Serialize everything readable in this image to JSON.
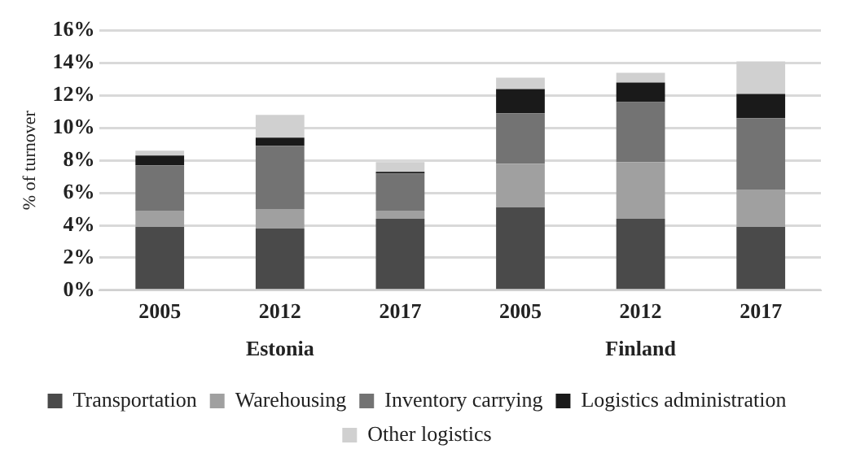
{
  "chart_data": {
    "type": "bar",
    "stacked": true,
    "ylabel": "% of turnover",
    "categories": [
      "2005",
      "2012",
      "2017",
      "2005",
      "2012",
      "2017"
    ],
    "series": [
      {
        "name": "Transportation",
        "color": "#4a4a4a",
        "values": [
          3.9,
          3.8,
          4.4,
          5.1,
          4.4,
          3.9
        ]
      },
      {
        "name": "Warehousing",
        "color": "#a0a0a0",
        "values": [
          1.0,
          1.2,
          0.5,
          2.7,
          3.5,
          2.3
        ]
      },
      {
        "name": "Inventory carrying",
        "color": "#737373",
        "values": [
          2.8,
          3.9,
          2.3,
          3.1,
          3.7,
          4.4
        ]
      },
      {
        "name": "Logistics administration",
        "color": "#1a1a1a",
        "values": [
          0.6,
          0.5,
          0.1,
          1.5,
          1.2,
          1.5
        ]
      },
      {
        "name": "Other logistics",
        "color": "#d0d0d0",
        "values": [
          0.3,
          1.4,
          0.6,
          0.7,
          0.6,
          2.0
        ]
      }
    ],
    "ylim": [
      0,
      16
    ],
    "yticks": [
      {
        "value": 0,
        "label": "0%"
      },
      {
        "value": 2,
        "label": "2%"
      },
      {
        "value": 4,
        "label": "4%"
      },
      {
        "value": 6,
        "label": "6%"
      },
      {
        "value": 8,
        "label": "8%"
      },
      {
        "value": 10,
        "label": "10%"
      },
      {
        "value": 12,
        "label": "12%"
      },
      {
        "value": 14,
        "label": "14%"
      },
      {
        "value": 16,
        "label": "16%"
      }
    ],
    "grid": "y",
    "legend": "bottom",
    "annotations": [
      "Estonia",
      "Finland"
    ]
  }
}
